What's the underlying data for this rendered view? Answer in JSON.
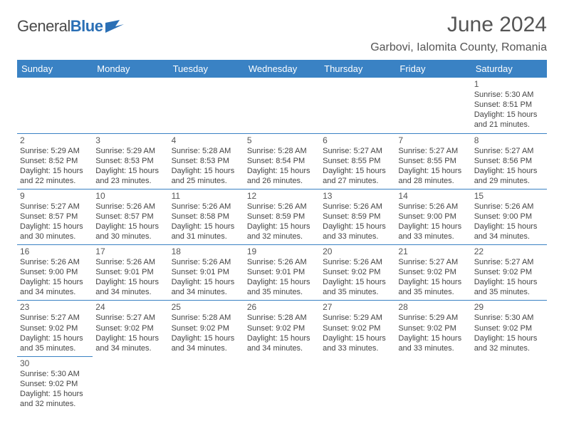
{
  "brand": {
    "name_part1": "General",
    "name_part2": "Blue"
  },
  "title": {
    "month": "June 2024",
    "location": "Garbovi, Ialomita County, Romania"
  },
  "colors": {
    "header_bg": "#3a82c4",
    "header_text": "#ffffff",
    "rule": "#3a82c4",
    "text": "#444444",
    "title_text": "#555555",
    "brand_blue": "#2a6fb5"
  },
  "typography": {
    "month_fontsize": 30,
    "location_fontsize": 16,
    "dayhead_fontsize": 13,
    "cell_fontsize": 11
  },
  "day_names": [
    "Sunday",
    "Monday",
    "Tuesday",
    "Wednesday",
    "Thursday",
    "Friday",
    "Saturday"
  ],
  "weeks": [
    [
      null,
      null,
      null,
      null,
      null,
      null,
      {
        "n": "1",
        "sunrise": "Sunrise: 5:30 AM",
        "sunset": "Sunset: 8:51 PM",
        "day1": "Daylight: 15 hours",
        "day2": "and 21 minutes."
      }
    ],
    [
      {
        "n": "2",
        "sunrise": "Sunrise: 5:29 AM",
        "sunset": "Sunset: 8:52 PM",
        "day1": "Daylight: 15 hours",
        "day2": "and 22 minutes."
      },
      {
        "n": "3",
        "sunrise": "Sunrise: 5:29 AM",
        "sunset": "Sunset: 8:53 PM",
        "day1": "Daylight: 15 hours",
        "day2": "and 23 minutes."
      },
      {
        "n": "4",
        "sunrise": "Sunrise: 5:28 AM",
        "sunset": "Sunset: 8:53 PM",
        "day1": "Daylight: 15 hours",
        "day2": "and 25 minutes."
      },
      {
        "n": "5",
        "sunrise": "Sunrise: 5:28 AM",
        "sunset": "Sunset: 8:54 PM",
        "day1": "Daylight: 15 hours",
        "day2": "and 26 minutes."
      },
      {
        "n": "6",
        "sunrise": "Sunrise: 5:27 AM",
        "sunset": "Sunset: 8:55 PM",
        "day1": "Daylight: 15 hours",
        "day2": "and 27 minutes."
      },
      {
        "n": "7",
        "sunrise": "Sunrise: 5:27 AM",
        "sunset": "Sunset: 8:55 PM",
        "day1": "Daylight: 15 hours",
        "day2": "and 28 minutes."
      },
      {
        "n": "8",
        "sunrise": "Sunrise: 5:27 AM",
        "sunset": "Sunset: 8:56 PM",
        "day1": "Daylight: 15 hours",
        "day2": "and 29 minutes."
      }
    ],
    [
      {
        "n": "9",
        "sunrise": "Sunrise: 5:27 AM",
        "sunset": "Sunset: 8:57 PM",
        "day1": "Daylight: 15 hours",
        "day2": "and 30 minutes."
      },
      {
        "n": "10",
        "sunrise": "Sunrise: 5:26 AM",
        "sunset": "Sunset: 8:57 PM",
        "day1": "Daylight: 15 hours",
        "day2": "and 30 minutes."
      },
      {
        "n": "11",
        "sunrise": "Sunrise: 5:26 AM",
        "sunset": "Sunset: 8:58 PM",
        "day1": "Daylight: 15 hours",
        "day2": "and 31 minutes."
      },
      {
        "n": "12",
        "sunrise": "Sunrise: 5:26 AM",
        "sunset": "Sunset: 8:59 PM",
        "day1": "Daylight: 15 hours",
        "day2": "and 32 minutes."
      },
      {
        "n": "13",
        "sunrise": "Sunrise: 5:26 AM",
        "sunset": "Sunset: 8:59 PM",
        "day1": "Daylight: 15 hours",
        "day2": "and 33 minutes."
      },
      {
        "n": "14",
        "sunrise": "Sunrise: 5:26 AM",
        "sunset": "Sunset: 9:00 PM",
        "day1": "Daylight: 15 hours",
        "day2": "and 33 minutes."
      },
      {
        "n": "15",
        "sunrise": "Sunrise: 5:26 AM",
        "sunset": "Sunset: 9:00 PM",
        "day1": "Daylight: 15 hours",
        "day2": "and 34 minutes."
      }
    ],
    [
      {
        "n": "16",
        "sunrise": "Sunrise: 5:26 AM",
        "sunset": "Sunset: 9:00 PM",
        "day1": "Daylight: 15 hours",
        "day2": "and 34 minutes."
      },
      {
        "n": "17",
        "sunrise": "Sunrise: 5:26 AM",
        "sunset": "Sunset: 9:01 PM",
        "day1": "Daylight: 15 hours",
        "day2": "and 34 minutes."
      },
      {
        "n": "18",
        "sunrise": "Sunrise: 5:26 AM",
        "sunset": "Sunset: 9:01 PM",
        "day1": "Daylight: 15 hours",
        "day2": "and 34 minutes."
      },
      {
        "n": "19",
        "sunrise": "Sunrise: 5:26 AM",
        "sunset": "Sunset: 9:01 PM",
        "day1": "Daylight: 15 hours",
        "day2": "and 35 minutes."
      },
      {
        "n": "20",
        "sunrise": "Sunrise: 5:26 AM",
        "sunset": "Sunset: 9:02 PM",
        "day1": "Daylight: 15 hours",
        "day2": "and 35 minutes."
      },
      {
        "n": "21",
        "sunrise": "Sunrise: 5:27 AM",
        "sunset": "Sunset: 9:02 PM",
        "day1": "Daylight: 15 hours",
        "day2": "and 35 minutes."
      },
      {
        "n": "22",
        "sunrise": "Sunrise: 5:27 AM",
        "sunset": "Sunset: 9:02 PM",
        "day1": "Daylight: 15 hours",
        "day2": "and 35 minutes."
      }
    ],
    [
      {
        "n": "23",
        "sunrise": "Sunrise: 5:27 AM",
        "sunset": "Sunset: 9:02 PM",
        "day1": "Daylight: 15 hours",
        "day2": "and 35 minutes."
      },
      {
        "n": "24",
        "sunrise": "Sunrise: 5:27 AM",
        "sunset": "Sunset: 9:02 PM",
        "day1": "Daylight: 15 hours",
        "day2": "and 34 minutes."
      },
      {
        "n": "25",
        "sunrise": "Sunrise: 5:28 AM",
        "sunset": "Sunset: 9:02 PM",
        "day1": "Daylight: 15 hours",
        "day2": "and 34 minutes."
      },
      {
        "n": "26",
        "sunrise": "Sunrise: 5:28 AM",
        "sunset": "Sunset: 9:02 PM",
        "day1": "Daylight: 15 hours",
        "day2": "and 34 minutes."
      },
      {
        "n": "27",
        "sunrise": "Sunrise: 5:29 AM",
        "sunset": "Sunset: 9:02 PM",
        "day1": "Daylight: 15 hours",
        "day2": "and 33 minutes."
      },
      {
        "n": "28",
        "sunrise": "Sunrise: 5:29 AM",
        "sunset": "Sunset: 9:02 PM",
        "day1": "Daylight: 15 hours",
        "day2": "and 33 minutes."
      },
      {
        "n": "29",
        "sunrise": "Sunrise: 5:30 AM",
        "sunset": "Sunset: 9:02 PM",
        "day1": "Daylight: 15 hours",
        "day2": "and 32 minutes."
      }
    ],
    [
      {
        "n": "30",
        "sunrise": "Sunrise: 5:30 AM",
        "sunset": "Sunset: 9:02 PM",
        "day1": "Daylight: 15 hours",
        "day2": "and 32 minutes."
      },
      null,
      null,
      null,
      null,
      null,
      null
    ]
  ]
}
